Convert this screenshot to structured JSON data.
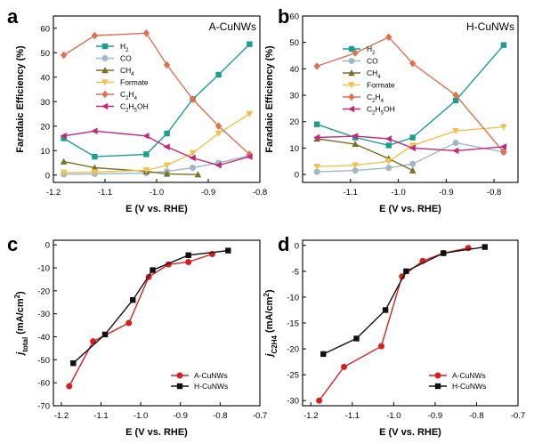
{
  "chart_data": [
    {
      "type": "line",
      "panel": "a",
      "title": "A-CuNWs",
      "xlabel": "E (V vs. RHE)",
      "ylabel": "Faradaic Efficiency (%)",
      "xlim": [
        -1.2,
        -0.8
      ],
      "ylim": [
        -3,
        65
      ],
      "xticks": [
        -1.2,
        -1.1,
        -1.0,
        -0.9,
        -0.8
      ],
      "xtick_labels": [
        "-1.2",
        "-1.1",
        "-1.0",
        "-0.9",
        "-0.8"
      ],
      "yticks": [
        0,
        10,
        20,
        30,
        40,
        50,
        60
      ],
      "ytick_labels": [
        "0",
        "10",
        "20",
        "30",
        "40",
        "50",
        "60"
      ],
      "legend_position": "left",
      "series": [
        {
          "name": "H2",
          "label_html": "H<tspan baseline-shift='sub' font-size='6'>2</tspan>",
          "color": "#1a9e8f",
          "marker": "square",
          "x": [
            -1.18,
            -1.12,
            -1.02,
            -0.98,
            -0.93,
            -0.88,
            -0.82
          ],
          "values": [
            15,
            7.5,
            8.5,
            17,
            31,
            41,
            53.5
          ]
        },
        {
          "name": "CO",
          "label_html": "CO",
          "color": "#9fb8c5",
          "marker": "circle",
          "x": [
            -1.18,
            -1.12,
            -1.02,
            -0.98,
            -0.93,
            -0.88,
            -0.82
          ],
          "values": [
            0.3,
            0.5,
            0.8,
            1.5,
            3,
            5,
            8
          ]
        },
        {
          "name": "CH4",
          "label_html": "CH<tspan baseline-shift='sub' font-size='6'>4</tspan>",
          "color": "#7a6f22",
          "marker": "triangle",
          "x": [
            -1.18,
            -1.12,
            -1.02,
            -0.98,
            -0.92
          ],
          "values": [
            5.5,
            3,
            1.5,
            0.5,
            0.2
          ]
        },
        {
          "name": "Formate",
          "label_html": "Formate",
          "color": "#f0c050",
          "marker": "triangle-down",
          "x": [
            -1.18,
            -1.12,
            -1.02,
            -0.98,
            -0.93,
            -0.88,
            -0.82
          ],
          "values": [
            1,
            1.2,
            2,
            4,
            9,
            17,
            25
          ]
        },
        {
          "name": "C2H4",
          "label_html": "C<tspan baseline-shift='sub' font-size='6'>2</tspan>H<tspan baseline-shift='sub' font-size='6'>4</tspan>",
          "color": "#e07050",
          "marker": "diamond",
          "x": [
            -1.18,
            -1.12,
            -1.02,
            -0.98,
            -0.93,
            -0.88,
            -0.82
          ],
          "values": [
            49,
            57,
            58,
            45,
            31,
            20,
            8.5
          ]
        },
        {
          "name": "C2H5OH",
          "label_html": "C<tspan baseline-shift='sub' font-size='6'>2</tspan>H<tspan baseline-shift='sub' font-size='6'>5</tspan>OH",
          "color": "#c02a7a",
          "marker": "tri-left",
          "x": [
            -1.18,
            -1.12,
            -1.02,
            -0.98,
            -0.93,
            -0.88,
            -0.82
          ],
          "values": [
            16,
            18,
            16,
            11.5,
            7,
            4,
            7.5
          ]
        }
      ]
    },
    {
      "type": "line",
      "panel": "b",
      "title": "H-CuNWs",
      "xlabel": "E (V vs. RHE)",
      "ylabel": "Faradaic Efficiency (%)",
      "xlim": [
        -1.2,
        -0.75
      ],
      "ylim": [
        -3,
        60
      ],
      "xticks": [
        -1.1,
        -1.0,
        -0.9,
        -0.8
      ],
      "xtick_labels": [
        "-1.1",
        "-1.0",
        "-0.9",
        "-0.8"
      ],
      "yticks": [
        0,
        10,
        20,
        30,
        40,
        50,
        60
      ],
      "ytick_labels": [
        "0",
        "10",
        "20",
        "30",
        "40",
        "50",
        "60"
      ],
      "legend_position": "left",
      "series": [
        {
          "name": "H2",
          "label_html": "H<tspan baseline-shift='sub' font-size='6'>2</tspan>",
          "color": "#1a9e8f",
          "marker": "square",
          "x": [
            -1.17,
            -1.09,
            -1.02,
            -0.97,
            -0.88,
            -0.78
          ],
          "values": [
            19,
            14,
            11,
            14,
            28,
            49
          ]
        },
        {
          "name": "CO",
          "label_html": "CO",
          "color": "#9fb8c5",
          "marker": "circle",
          "x": [
            -1.17,
            -1.09,
            -1.02,
            -0.97,
            -0.88,
            -0.78
          ],
          "values": [
            1,
            1.5,
            2.5,
            4,
            12,
            8.5
          ]
        },
        {
          "name": "CH4",
          "label_html": "CH<tspan baseline-shift='sub' font-size='6'>4</tspan>",
          "color": "#7a6f22",
          "marker": "triangle",
          "x": [
            -1.17,
            -1.09,
            -1.02,
            -0.97
          ],
          "values": [
            13.5,
            11.5,
            6,
            1.5
          ]
        },
        {
          "name": "Formate",
          "label_html": "Formate",
          "color": "#f0c050",
          "marker": "triangle-down",
          "x": [
            -1.17,
            -1.09,
            -1.02,
            -0.97,
            -0.88,
            -0.78
          ],
          "values": [
            3,
            3.5,
            5,
            11,
            16.5,
            18
          ]
        },
        {
          "name": "C2H4",
          "label_html": "C<tspan baseline-shift='sub' font-size='6'>2</tspan>H<tspan baseline-shift='sub' font-size='6'>4</tspan>",
          "color": "#e07050",
          "marker": "diamond",
          "x": [
            -1.17,
            -1.09,
            -1.02,
            -0.97,
            -0.88,
            -0.78
          ],
          "values": [
            41,
            46,
            52,
            42,
            30,
            8.5
          ]
        },
        {
          "name": "C2H5OH",
          "label_html": "C<tspan baseline-shift='sub' font-size='6'>2</tspan>H<tspan baseline-shift='sub' font-size='6'>5</tspan>OH",
          "color": "#c02a7a",
          "marker": "tri-left",
          "x": [
            -1.17,
            -1.09,
            -1.02,
            -0.97,
            -0.88,
            -0.78
          ],
          "values": [
            14,
            14.5,
            13.5,
            10,
            9,
            10.5
          ]
        }
      ]
    },
    {
      "type": "line",
      "panel": "c",
      "title": "",
      "xlabel": "E (V vs. RHE)",
      "ylabel_html": "<tspan font-style='italic'>j</tspan><tspan baseline-shift='sub' font-size='8'>total</tspan> (mA/cm<tspan baseline-shift='super' font-size='8'>2</tspan>)",
      "ylabel": "j_total (mA/cm2)",
      "xlim": [
        -1.22,
        -0.7
      ],
      "ylim": [
        -70,
        2
      ],
      "xticks": [
        -1.2,
        -1.1,
        -1.0,
        -0.9,
        -0.8,
        -0.7
      ],
      "xtick_labels": [
        "-1.2",
        "-1.1",
        "-1.0",
        "-0.9",
        "-0.8",
        "-0.7"
      ],
      "yticks": [
        0,
        -10,
        -20,
        -30,
        -40,
        -50,
        -60,
        -70
      ],
      "ytick_labels": [
        "0",
        "-10",
        "-20",
        "-30",
        "-40",
        "-50",
        "-60",
        "-70"
      ],
      "legend_position": "bottom-right",
      "series": [
        {
          "name": "A-CuNWs",
          "label_html": "A-CuNWs",
          "color": "#d42020",
          "marker": "circle",
          "x": [
            -1.18,
            -1.12,
            -1.03,
            -0.98,
            -0.93,
            -0.88,
            -0.82
          ],
          "values": [
            -61.5,
            -42,
            -34,
            -14,
            -8.5,
            -7.5,
            -4
          ]
        },
        {
          "name": "H-CuNWs",
          "label_html": "H-CuNWs",
          "color": "#111111",
          "marker": "square",
          "x": [
            -1.17,
            -1.09,
            -1.02,
            -0.97,
            -0.88,
            -0.78
          ],
          "values": [
            -51.5,
            -39,
            -24,
            -11,
            -4.5,
            -2.5
          ]
        }
      ]
    },
    {
      "type": "line",
      "panel": "d",
      "title": "",
      "xlabel": "E (V vs. RHE)",
      "ylabel_html": "<tspan font-style='italic'>j</tspan><tspan baseline-shift='sub' font-size='8'>C2H4</tspan> (mA/cm<tspan baseline-shift='super' font-size='8'>2</tspan>)",
      "ylabel": "j_C2H4 (mA/cm2)",
      "xlim": [
        -1.22,
        -0.7
      ],
      "ylim": [
        -31,
        1
      ],
      "xticks": [
        -1.2,
        -1.1,
        -1.0,
        -0.9,
        -0.8,
        -0.7
      ],
      "xtick_labels": [
        "-1.2",
        "-1.1",
        "-1.0",
        "-0.9",
        "-0.8",
        "-0.7"
      ],
      "yticks": [
        0,
        -5,
        -10,
        -15,
        -20,
        -25,
        -30
      ],
      "ytick_labels": [
        "0",
        "-5",
        "-10",
        "-15",
        "-20",
        "-25",
        "-30"
      ],
      "legend_position": "bottom-right",
      "series": [
        {
          "name": "A-CuNWs",
          "label_html": "A-CuNWs",
          "color": "#d42020",
          "marker": "circle",
          "x": [
            -1.18,
            -1.12,
            -1.03,
            -0.98,
            -0.93,
            -0.88,
            -0.82
          ],
          "values": [
            -30,
            -23.5,
            -19.5,
            -6,
            -3,
            -1.5,
            -0.5
          ]
        },
        {
          "name": "H-CuNWs",
          "label_html": "H-CuNWs",
          "color": "#111111",
          "marker": "square",
          "x": [
            -1.17,
            -1.09,
            -1.02,
            -0.97,
            -0.88,
            -0.78
          ],
          "values": [
            -21,
            -18,
            -12.5,
            -5,
            -1.5,
            -0.3
          ]
        }
      ]
    }
  ]
}
